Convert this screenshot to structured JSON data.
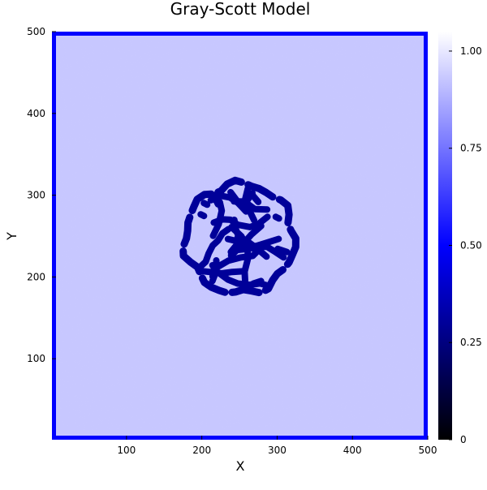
{
  "chart_data": {
    "type": "heatmap",
    "title": "Gray-Scott Model",
    "xlabel": "X",
    "ylabel": "Y",
    "xlim": [
      1,
      500
    ],
    "ylim": [
      1,
      500
    ],
    "x_ticks": [
      100,
      200,
      300,
      400,
      500
    ],
    "y_ticks": [
      100,
      200,
      300,
      400,
      500
    ],
    "colorbar": {
      "range": [
        0,
        1.05
      ],
      "ticks": [
        0,
        0.25,
        0.5,
        0.75,
        1.0
      ],
      "tick_labels": [
        "0",
        "0.25",
        "0.50",
        "0.75",
        "1.00"
      ],
      "colors": [
        "#000000",
        "#0000ff",
        "#ffffff"
      ]
    },
    "field": {
      "background_value": 0.93,
      "border_value": 0.5,
      "pattern_value": 0.3,
      "pattern_region": {
        "center_x": 250,
        "center_y": 247,
        "radius_x": 78,
        "radius_y": 72
      },
      "pattern_description": "labyrinthine stripes"
    },
    "grid": false,
    "colorbar_placement": "right"
  }
}
